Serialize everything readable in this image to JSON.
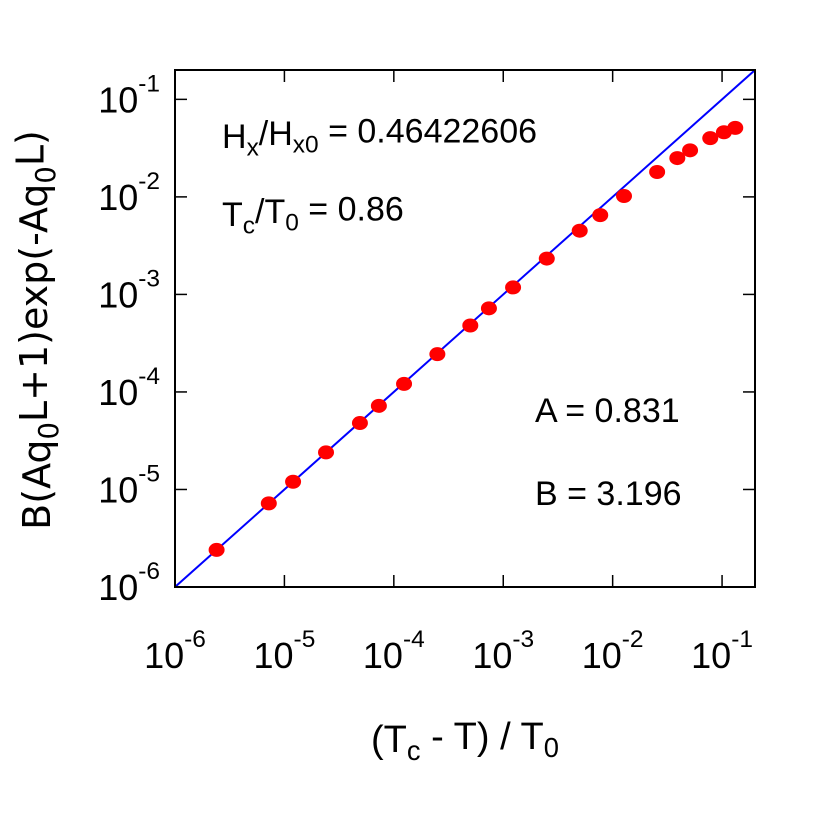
{
  "chart_data": {
    "type": "scatter",
    "xlog": true,
    "ylog": true,
    "xlim": [
      1e-06,
      0.2
    ],
    "ylim": [
      1e-06,
      0.2
    ],
    "xticks": [
      {
        "value": 1e-06,
        "label": "10",
        "exponent": "-6"
      },
      {
        "value": 1e-05,
        "label": "10",
        "exponent": "-5"
      },
      {
        "value": 0.0001,
        "label": "10",
        "exponent": "-4"
      },
      {
        "value": 0.001,
        "label": "10",
        "exponent": "-3"
      },
      {
        "value": 0.01,
        "label": "10",
        "exponent": "-2"
      },
      {
        "value": 0.1,
        "label": "10",
        "exponent": "-1"
      }
    ],
    "yticks": [
      {
        "value": 1e-06,
        "label": "10",
        "exponent": "-6"
      },
      {
        "value": 1e-05,
        "label": "10",
        "exponent": "-5"
      },
      {
        "value": 0.0001,
        "label": "10",
        "exponent": "-4"
      },
      {
        "value": 0.001,
        "label": "10",
        "exponent": "-3"
      },
      {
        "value": 0.01,
        "label": "10",
        "exponent": "-2"
      },
      {
        "value": 0.1,
        "label": "10",
        "exponent": "-1"
      }
    ],
    "xlabel": [
      {
        "text": "(T"
      },
      {
        "sub": "c"
      },
      {
        "text": " - T) / T"
      },
      {
        "sub": "0"
      }
    ],
    "ylabel": [
      {
        "text": "B(Aq"
      },
      {
        "sub": "0"
      },
      {
        "text": "L+1)exp(-Aq"
      },
      {
        "sub": "0"
      },
      {
        "text": "L)"
      }
    ],
    "annotations": [
      [
        {
          "text": "H"
        },
        {
          "sub": "x"
        },
        {
          "text": "/H"
        },
        {
          "sub": "x0"
        },
        {
          "text": " = 0.46422606"
        }
      ],
      [
        {
          "text": "T"
        },
        {
          "sub": "c"
        },
        {
          "text": "/T"
        },
        {
          "sub": "0"
        },
        {
          "text": " = 0.86"
        }
      ],
      [
        {
          "text": "A = 0.831"
        }
      ],
      [
        {
          "text": "B = 3.196"
        }
      ]
    ],
    "series": [
      {
        "type": "line",
        "color": "#0000ff",
        "x": [
          1e-06,
          0.2
        ],
        "values": [
          1e-06,
          0.2
        ]
      },
      {
        "type": "scatter",
        "color": "#ff0000",
        "x": [
          2.4e-06,
          7.2e-06,
          1.2e-05,
          2.4e-05,
          4.9e-05,
          7.3e-05,
          0.000124,
          0.00025,
          0.0005,
          0.00074,
          0.00123,
          0.0025,
          0.005,
          0.0077,
          0.0127,
          0.0255,
          0.039,
          0.051,
          0.078,
          0.104,
          0.132
        ],
        "values": [
          2.4e-06,
          7.2e-06,
          1.2e-05,
          2.4e-05,
          4.8e-05,
          7.2e-05,
          0.000121,
          0.000244,
          0.00048,
          0.00072,
          0.00118,
          0.00233,
          0.0045,
          0.0065,
          0.0102,
          0.018,
          0.025,
          0.03,
          0.04,
          0.046,
          0.051
        ]
      }
    ]
  }
}
